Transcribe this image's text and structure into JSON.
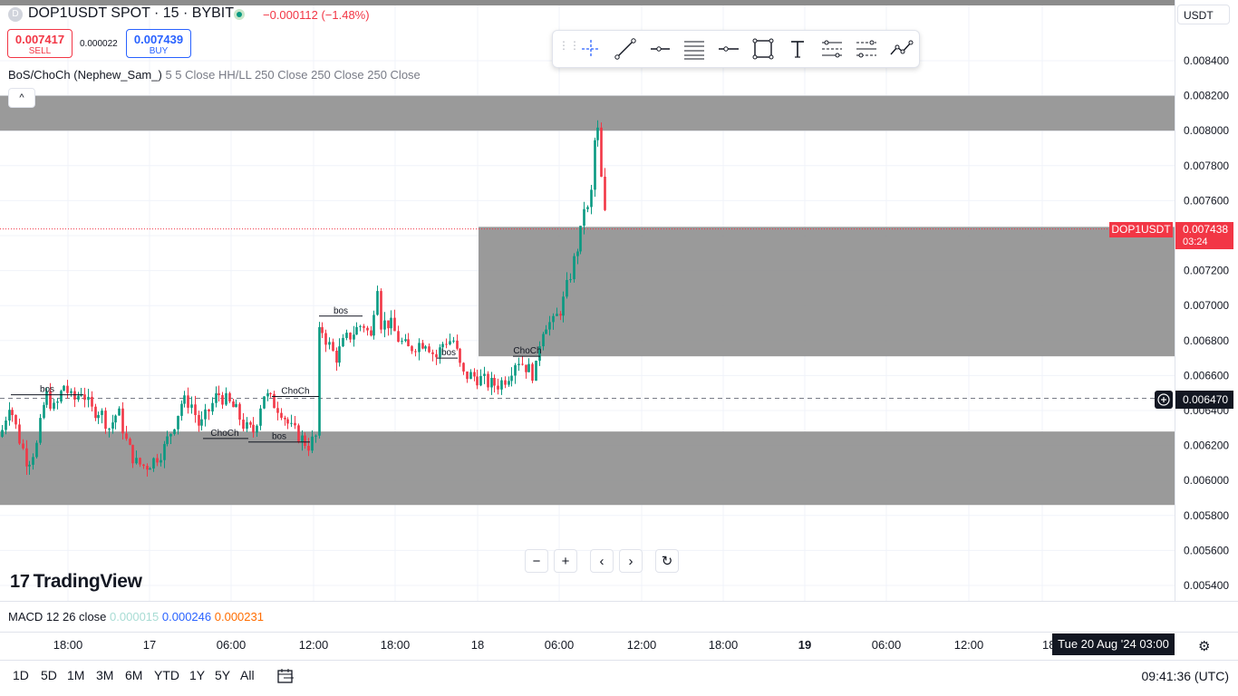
{
  "header": {
    "title": "DOP1USDT SPOT · 15 · BYBIT",
    "logo_letter": "D",
    "change": "−0.000112 (−1.48%)",
    "sell_price": "0.007417",
    "sell_label": "SELL",
    "spread": "0.000022",
    "buy_price": "0.007439",
    "buy_label": "BUY",
    "currency": "USDT"
  },
  "indicator": {
    "name": "BoS/ChoCh (Nephew_Sam_)",
    "params": "5 5 Close HH/LL 250 Close 250 Close 250 Close"
  },
  "collapse_glyph": "^",
  "drawing_toolbar": {
    "tools": [
      "crosshair-tool-icon",
      "trend-line-icon",
      "horizontal-ray-icon",
      "fib-retracement-icon",
      "horizontal-line-icon",
      "rectangle-icon",
      "text-tool-icon",
      "pattern-icon",
      "forecast-icon",
      "path-icon"
    ]
  },
  "colors": {
    "up": "#089981",
    "down": "#f23645",
    "zone": "#8c8c8c",
    "accent": "#2962ff"
  },
  "price_tags": {
    "symbol": "DOP1USDT",
    "last_price": "0.007438",
    "countdown": "03:24",
    "crosshair_price": "0.006470"
  },
  "branding": {
    "logo_text": "TradingView",
    "logo_mark": "17"
  },
  "nav_buttons": [
    "−",
    "+",
    "‹",
    "›",
    "↻"
  ],
  "macd": {
    "title": "MACD",
    "params": "12 26 close",
    "v1": "0.000015",
    "v2": "0.000246",
    "v3": "0.000231",
    "c1": "#a8dcd4",
    "c2": "#2962ff",
    "c3": "#ff6d00"
  },
  "crosshair_date": "Tue 20 Aug '24   03:00",
  "bottom": {
    "timeframes": [
      "1D",
      "5D",
      "1M",
      "3M",
      "6M",
      "YTD",
      "1Y",
      "5Y",
      "All"
    ],
    "clock": "09:41:36 (UTC)"
  },
  "chart_data": {
    "type": "candlestick",
    "title": "DOP1USDT SPOT · 15 · BYBIT",
    "ylim": [
      0.0054,
      0.0085
    ],
    "y_ticks": [
      "0.008400",
      "0.008200",
      "0.008000",
      "0.007800",
      "0.007600",
      "0.007400",
      "0.007200",
      "0.007000",
      "0.006800",
      "0.006600",
      "0.006400",
      "0.006200",
      "0.006000",
      "0.005800",
      "0.005600",
      "0.005400"
    ],
    "x_ticks": [
      "18:00",
      "17",
      "06:00",
      "12:00",
      "18:00",
      "18",
      "06:00",
      "12:00",
      "18:00",
      "19",
      "06:00",
      "12:00",
      "18:"
    ],
    "grid": true,
    "last_price": 0.007438,
    "crosshair_price": 0.00647,
    "zones": [
      {
        "top": 0.0082,
        "bottom": 0.008,
        "from": "start",
        "to": "end"
      },
      {
        "top": 0.00745,
        "bottom": 0.00671,
        "from": "18 03:00",
        "to": "end"
      },
      {
        "top": 0.00628,
        "bottom": 0.00586,
        "from": "start",
        "to": "end"
      }
    ],
    "labels": [
      {
        "text": "bos",
        "price": 0.00649
      },
      {
        "text": "ChoCh",
        "price": 0.00624
      },
      {
        "text": "bos",
        "price": 0.00622
      },
      {
        "text": "ChoCh",
        "price": 0.00648
      },
      {
        "text": "bos",
        "price": 0.00694
      },
      {
        "text": "bos",
        "price": 0.0067
      },
      {
        "text": "ChoCh",
        "price": 0.00671
      }
    ],
    "keypoints": [
      [
        0,
        0.00625
      ],
      [
        10,
        0.00645
      ],
      [
        20,
        0.00625
      ],
      [
        30,
        0.0061
      ],
      [
        40,
        0.0062
      ],
      [
        50,
        0.0065
      ],
      [
        60,
        0.0064
      ],
      [
        70,
        0.00655
      ],
      [
        80,
        0.00645
      ],
      [
        90,
        0.00652
      ],
      [
        100,
        0.0064
      ],
      [
        110,
        0.0064
      ],
      [
        120,
        0.0063
      ],
      [
        130,
        0.0064
      ],
      [
        140,
        0.0062
      ],
      [
        150,
        0.0061
      ],
      [
        160,
        0.00608
      ],
      [
        170,
        0.00612
      ],
      [
        180,
        0.00618
      ],
      [
        190,
        0.0063
      ],
      [
        200,
        0.00645
      ],
      [
        210,
        0.00645
      ],
      [
        220,
        0.0063
      ],
      [
        230,
        0.0064
      ],
      [
        240,
        0.0065
      ],
      [
        250,
        0.00645
      ],
      [
        260,
        0.0064
      ],
      [
        270,
        0.0063
      ],
      [
        280,
        0.00628
      ],
      [
        290,
        0.0065
      ],
      [
        300,
        0.00645
      ],
      [
        310,
        0.0064
      ],
      [
        320,
        0.0063
      ],
      [
        330,
        0.00625
      ],
      [
        340,
        0.0062
      ],
      [
        348,
        0.00625
      ],
      [
        352,
        0.0069
      ],
      [
        360,
        0.0068
      ],
      [
        370,
        0.0067
      ],
      [
        380,
        0.0068
      ],
      [
        390,
        0.00685
      ],
      [
        400,
        0.0069
      ],
      [
        410,
        0.0068
      ],
      [
        415,
        0.0072
      ],
      [
        420,
        0.0069
      ],
      [
        430,
        0.0069
      ],
      [
        440,
        0.0068
      ],
      [
        450,
        0.00675
      ],
      [
        460,
        0.00678
      ],
      [
        470,
        0.0068
      ],
      [
        480,
        0.0067
      ],
      [
        490,
        0.0068
      ],
      [
        500,
        0.0068
      ],
      [
        510,
        0.0066
      ],
      [
        520,
        0.0066
      ],
      [
        530,
        0.00658
      ],
      [
        540,
        0.00655
      ],
      [
        550,
        0.00655
      ],
      [
        560,
        0.0066
      ],
      [
        570,
        0.0067
      ],
      [
        580,
        0.00665
      ],
      [
        590,
        0.0066
      ],
      [
        595,
        0.0068
      ],
      [
        600,
        0.0069
      ],
      [
        610,
        0.0069
      ],
      [
        620,
        0.007
      ],
      [
        630,
        0.0072
      ],
      [
        640,
        0.0074
      ],
      [
        645,
        0.0076
      ],
      [
        650,
        0.0075
      ],
      [
        655,
        0.0079
      ],
      [
        658,
        0.0081
      ],
      [
        662,
        0.0078
      ],
      [
        665,
        0.0076
      ],
      [
        669,
        0.00744
      ]
    ]
  }
}
